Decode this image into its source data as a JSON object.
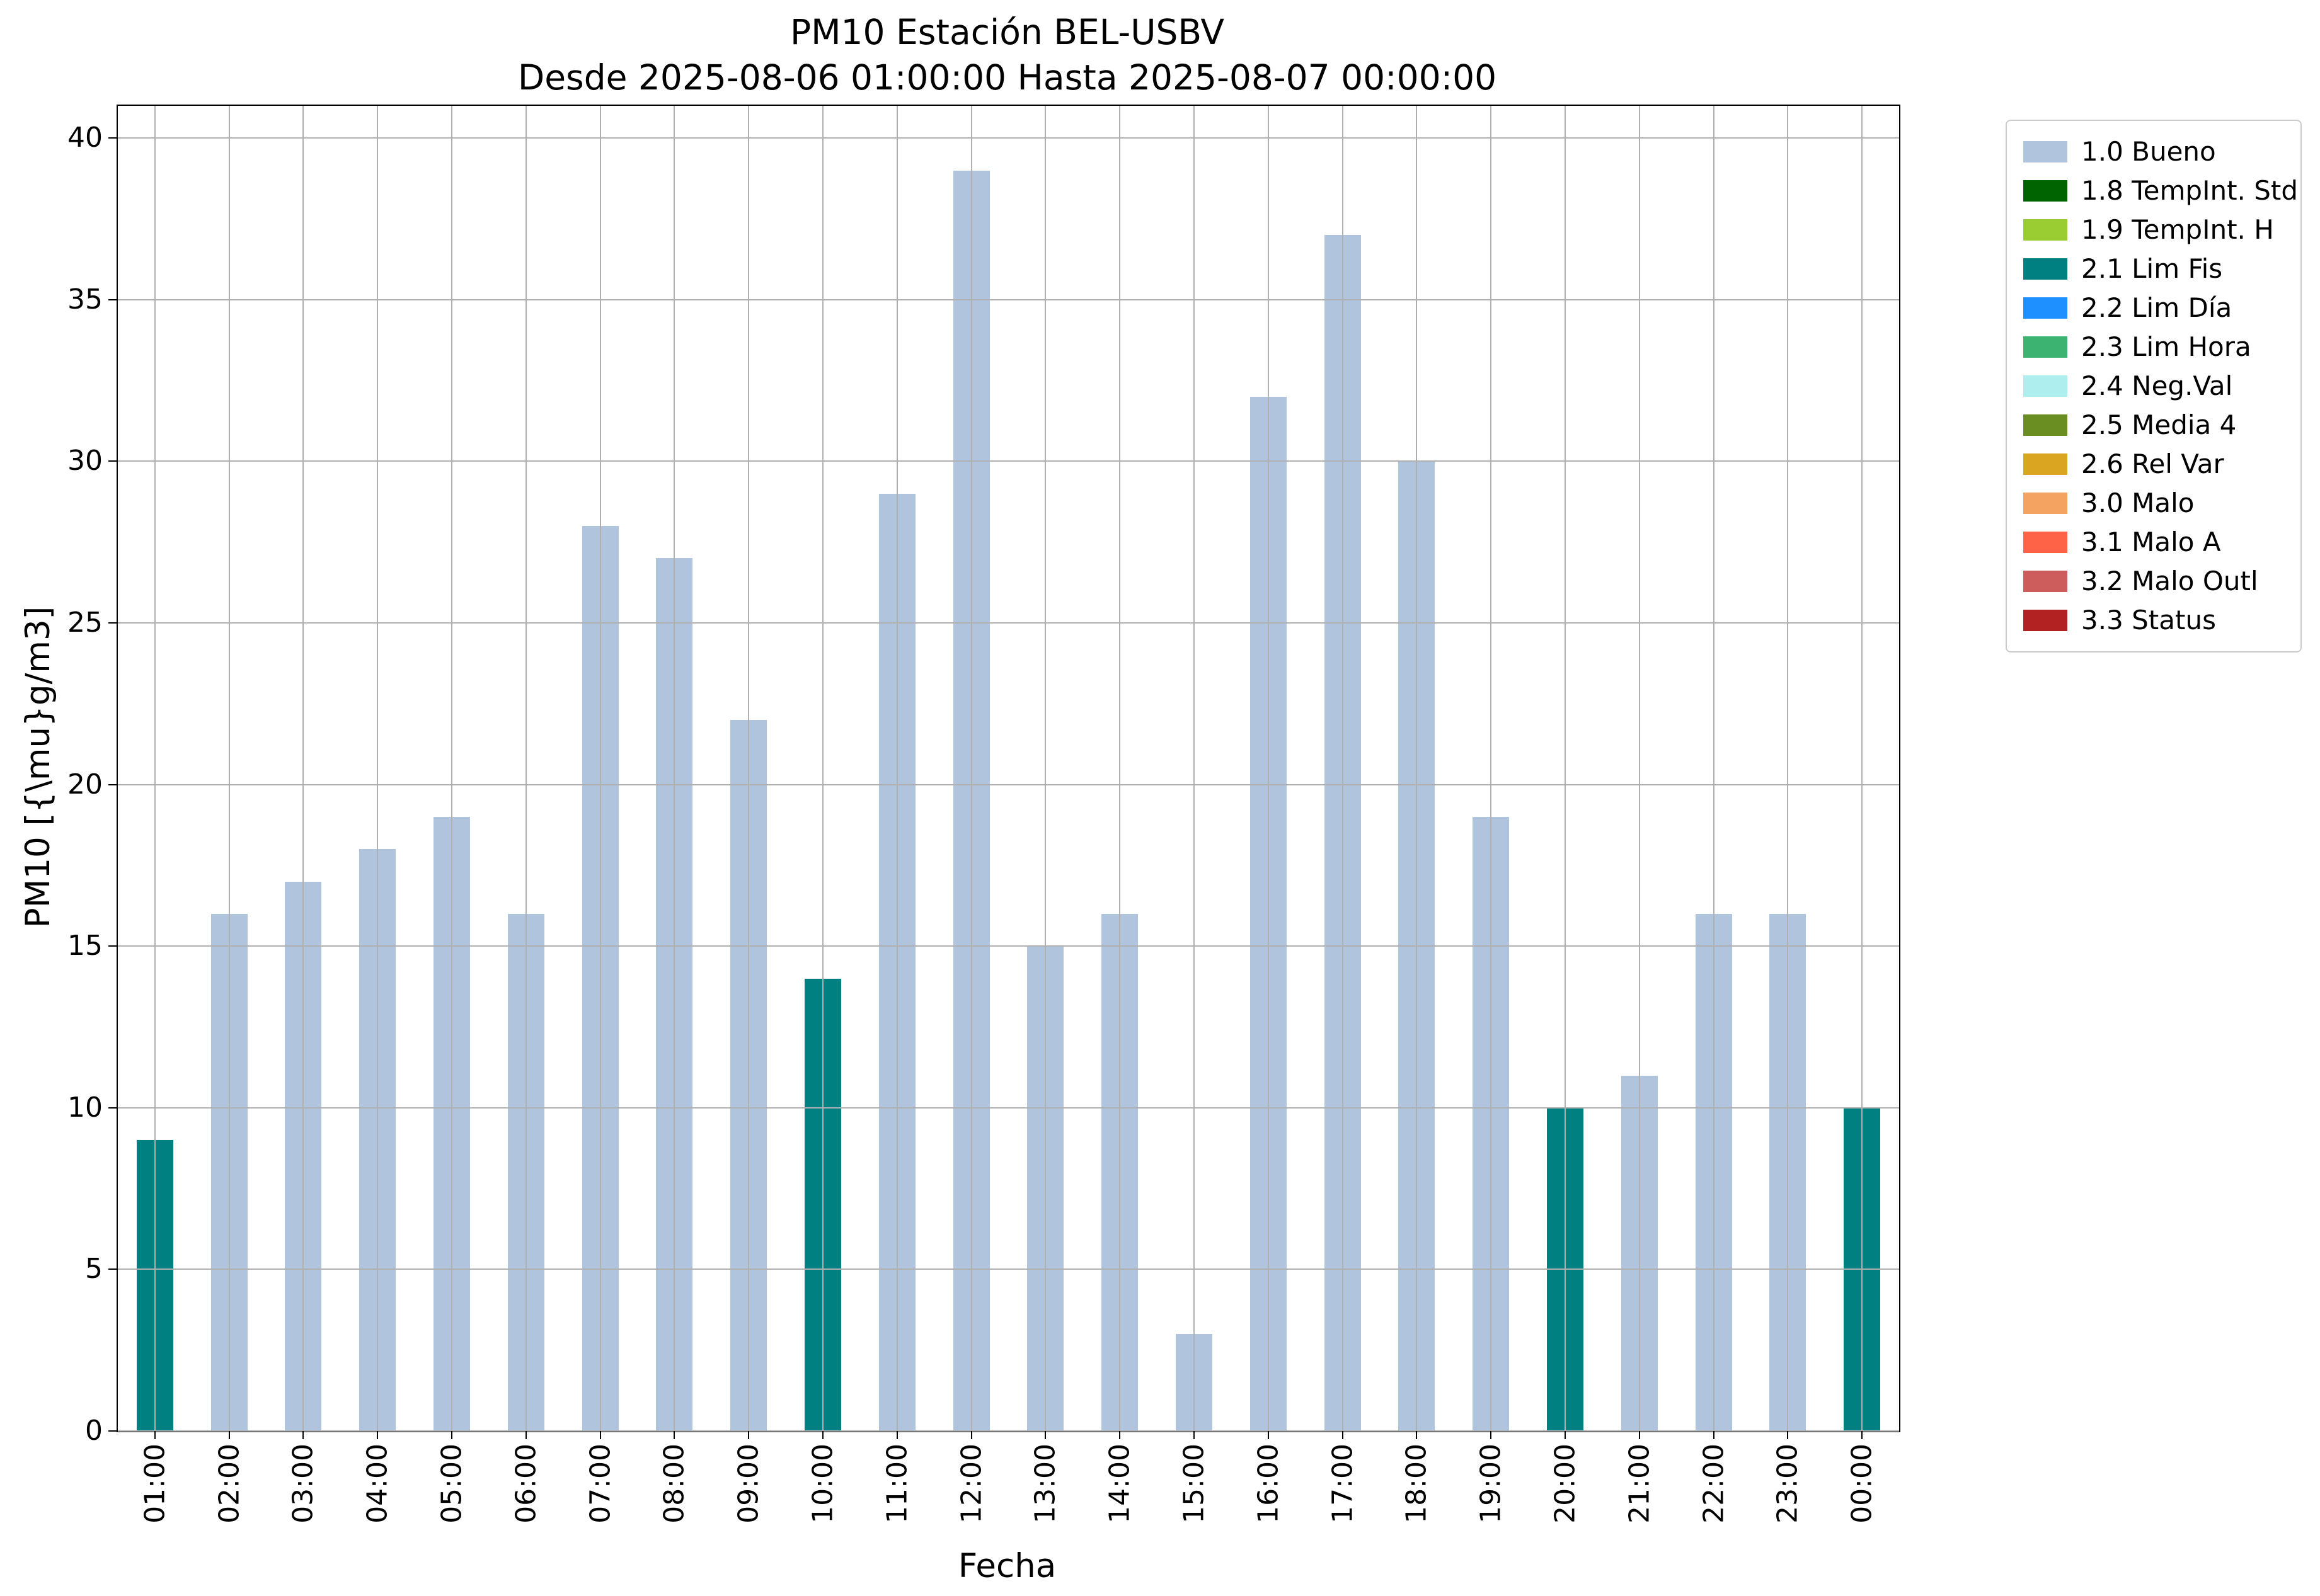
{
  "chart_data": {
    "type": "bar",
    "title": "PM10 Estación BEL-USBV",
    "subtitle": "Desde 2025-08-06 01:00:00 Hasta 2025-08-07 00:00:00",
    "xlabel": "Fecha",
    "ylabel": "PM10 [{\\mu}g/m3]",
    "ylim": [
      0,
      41
    ],
    "yticks": [
      0,
      5,
      10,
      15,
      20,
      25,
      30,
      35,
      40
    ],
    "grid": true,
    "categories": [
      "01:00",
      "02:00",
      "03:00",
      "04:00",
      "05:00",
      "06:00",
      "07:00",
      "08:00",
      "09:00",
      "10:00",
      "11:00",
      "12:00",
      "13:00",
      "14:00",
      "15:00",
      "16:00",
      "17:00",
      "18:00",
      "19:00",
      "20:00",
      "21:00",
      "22:00",
      "23:00",
      "00:00"
    ],
    "values": [
      9,
      16,
      17,
      18,
      19,
      16,
      28,
      27,
      22,
      14,
      29,
      39,
      15,
      16,
      3,
      32,
      37,
      30,
      19,
      10,
      11,
      16,
      16,
      10
    ],
    "point_status": [
      "2.1 Lim Fis",
      "1.0 Bueno",
      "1.0 Bueno",
      "1.0 Bueno",
      "1.0 Bueno",
      "1.0 Bueno",
      "1.0 Bueno",
      "1.0 Bueno",
      "1.0 Bueno",
      "2.1 Lim Fis",
      "1.0 Bueno",
      "1.0 Bueno",
      "1.0 Bueno",
      "1.0 Bueno",
      "1.0 Bueno",
      "1.0 Bueno",
      "1.0 Bueno",
      "1.0 Bueno",
      "1.0 Bueno",
      "2.1 Lim Fis",
      "1.0 Bueno",
      "1.0 Bueno",
      "1.0 Bueno",
      "2.1 Lim Fis"
    ],
    "legend": {
      "position": "outside-right",
      "entries": [
        {
          "label": "1.0 Bueno",
          "color": "#b0c4de"
        },
        {
          "label": "1.8 TempInt. Std",
          "color": "#006400"
        },
        {
          "label": "1.9 TempInt. H",
          "color": "#9acd32"
        },
        {
          "label": "2.1 Lim Fis",
          "color": "#008080"
        },
        {
          "label": "2.2 Lim Día",
          "color": "#1e90ff"
        },
        {
          "label": "2.3 Lim Hora",
          "color": "#3cb371"
        },
        {
          "label": "2.4 Neg.Val",
          "color": "#afeeee"
        },
        {
          "label": "2.5 Media 4",
          "color": "#6b8e23"
        },
        {
          "label": "2.6 Rel Var",
          "color": "#daa520"
        },
        {
          "label": "3.0 Malo",
          "color": "#f4a460"
        },
        {
          "label": "3.1 Malo A",
          "color": "#ff6347"
        },
        {
          "label": "3.2 Malo Outl",
          "color": "#cd5c5c"
        },
        {
          "label": "3.3 Status",
          "color": "#b22222"
        }
      ]
    },
    "colors": {
      "grid": "#b0b0b0",
      "spine": "#000000",
      "background": "#ffffff"
    }
  }
}
